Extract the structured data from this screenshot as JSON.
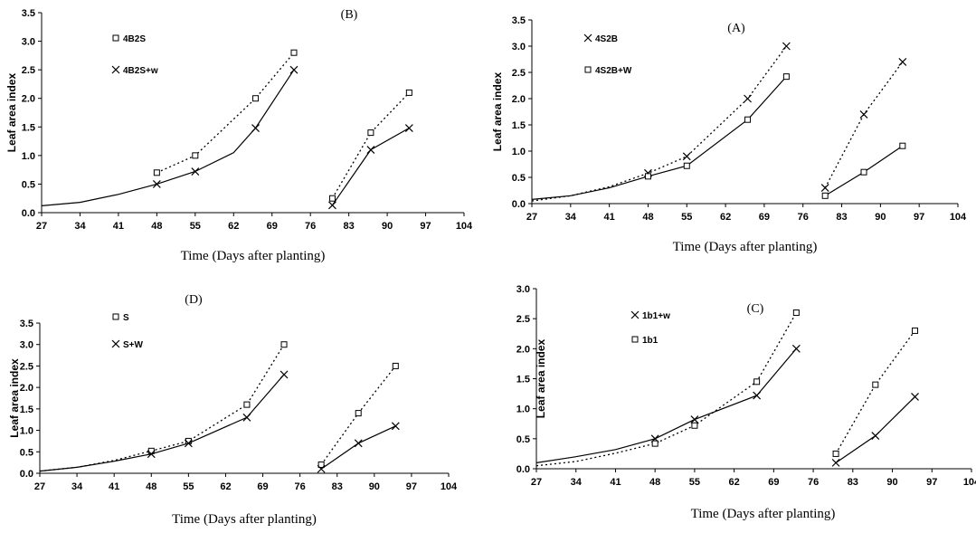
{
  "chart_data": [
    {
      "panel": "(B)",
      "type": "line",
      "title": "(B)",
      "xlabel": "Time (Days after planting)",
      "ylabel": "Leaf area index",
      "xticks": [
        27,
        34,
        41,
        48,
        55,
        62,
        69,
        76,
        83,
        90,
        97,
        104
      ],
      "yticks": [
        0.0,
        0.5,
        1.0,
        1.5,
        2.0,
        2.5,
        3.0,
        3.5
      ],
      "xlim": [
        27,
        104
      ],
      "ylim": [
        0,
        3.5
      ],
      "legend_placement": "top-left",
      "series": [
        {
          "name": "4B2S",
          "marker": "square",
          "dash": true,
          "segments": [
            {
              "points": [
                [
                  48,
                  0.7
                ],
                [
                  55,
                  1.0
                ],
                [
                  66,
                  2.0
                ],
                [
                  73,
                  2.8
                ]
              ],
              "marked": [
                true,
                true,
                true,
                true
              ]
            },
            {
              "points": [
                [
                  80,
                  0.25
                ],
                [
                  87,
                  1.4
                ],
                [
                  94,
                  2.1
                ]
              ],
              "marked": [
                true,
                true,
                true
              ]
            }
          ]
        },
        {
          "name": "4B2S+w",
          "marker": "x",
          "dash": false,
          "segments": [
            {
              "points": [
                [
                  27,
                  0.12
                ],
                [
                  34,
                  0.18
                ],
                [
                  41,
                  0.32
                ],
                [
                  48,
                  0.5
                ],
                [
                  55,
                  0.72
                ],
                [
                  62,
                  1.05
                ],
                [
                  66,
                  1.48
                ],
                [
                  73,
                  2.5
                ]
              ],
              "marked": [
                false,
                false,
                false,
                true,
                true,
                false,
                true,
                true
              ]
            },
            {
              "points": [
                [
                  80,
                  0.13
                ],
                [
                  87,
                  1.1
                ],
                [
                  94,
                  1.48
                ]
              ],
              "marked": [
                true,
                true,
                true
              ]
            }
          ]
        }
      ]
    },
    {
      "panel": "(A)",
      "type": "line",
      "title": "(A)",
      "xlabel": "Time (Days after planting)",
      "ylabel": "Leaf area index",
      "xticks": [
        27,
        34,
        41,
        48,
        55,
        62,
        69,
        76,
        83,
        90,
        97,
        104
      ],
      "yticks": [
        0.0,
        0.5,
        1.0,
        1.5,
        2.0,
        2.5,
        3.0,
        3.5
      ],
      "xlim": [
        27,
        104
      ],
      "ylim": [
        0,
        3.5
      ],
      "legend_placement": "top-left",
      "series": [
        {
          "name": "4S2B",
          "marker": "x",
          "dash": true,
          "segments": [
            {
              "points": [
                [
                  27,
                  0.05
                ],
                [
                  34,
                  0.15
                ],
                [
                  41,
                  0.32
                ],
                [
                  48,
                  0.58
                ],
                [
                  55,
                  0.9
                ],
                [
                  66,
                  2.0
                ],
                [
                  73,
                  3.0
                ]
              ],
              "marked": [
                false,
                false,
                false,
                true,
                true,
                true,
                true
              ]
            },
            {
              "points": [
                [
                  80,
                  0.3
                ],
                [
                  87,
                  1.7
                ],
                [
                  94,
                  2.7
                ]
              ],
              "marked": [
                true,
                true,
                true
              ]
            }
          ]
        },
        {
          "name": "4S2B+W",
          "marker": "square",
          "dash": false,
          "segments": [
            {
              "points": [
                [
                  27,
                  0.08
                ],
                [
                  34,
                  0.15
                ],
                [
                  41,
                  0.3
                ],
                [
                  48,
                  0.52
                ],
                [
                  55,
                  0.72
                ],
                [
                  66,
                  1.6
                ],
                [
                  73,
                  2.42
                ]
              ],
              "marked": [
                false,
                false,
                false,
                true,
                true,
                true,
                true
              ]
            },
            {
              "points": [
                [
                  80,
                  0.15
                ],
                [
                  87,
                  0.6
                ],
                [
                  94,
                  1.1
                ]
              ],
              "marked": [
                true,
                true,
                true
              ]
            }
          ]
        }
      ]
    },
    {
      "panel": "(D)",
      "type": "line",
      "title": "(D)",
      "xlabel": "Time (Days after planting)",
      "ylabel": "Leaf area index",
      "xticks": [
        27,
        34,
        41,
        48,
        55,
        62,
        69,
        76,
        83,
        90,
        97,
        104
      ],
      "yticks": [
        0.0,
        0.5,
        1.0,
        1.5,
        2.0,
        2.5,
        3.0,
        3.5
      ],
      "xlim": [
        27,
        104
      ],
      "ylim": [
        0,
        3.5
      ],
      "legend_placement": "top-left",
      "series": [
        {
          "name": "S",
          "marker": "square",
          "dash": true,
          "segments": [
            {
              "points": [
                [
                  27,
                  0.05
                ],
                [
                  34,
                  0.14
                ],
                [
                  41,
                  0.3
                ],
                [
                  48,
                  0.52
                ],
                [
                  55,
                  0.75
                ],
                [
                  66,
                  1.6
                ],
                [
                  73,
                  3.0
                ]
              ],
              "marked": [
                false,
                false,
                false,
                true,
                true,
                true,
                true
              ]
            },
            {
              "points": [
                [
                  80,
                  0.2
                ],
                [
                  87,
                  1.4
                ],
                [
                  94,
                  2.5
                ]
              ],
              "marked": [
                true,
                true,
                true
              ]
            }
          ]
        },
        {
          "name": "S+W",
          "marker": "x",
          "dash": false,
          "segments": [
            {
              "points": [
                [
                  27,
                  0.05
                ],
                [
                  34,
                  0.14
                ],
                [
                  41,
                  0.28
                ],
                [
                  48,
                  0.45
                ],
                [
                  55,
                  0.7
                ],
                [
                  66,
                  1.3
                ],
                [
                  73,
                  2.3
                ]
              ],
              "marked": [
                false,
                false,
                false,
                true,
                true,
                true,
                true
              ]
            },
            {
              "points": [
                [
                  80,
                  0.1
                ],
                [
                  87,
                  0.7
                ],
                [
                  94,
                  1.1
                ]
              ],
              "marked": [
                true,
                true,
                true
              ]
            }
          ]
        }
      ]
    },
    {
      "panel": "(C)",
      "type": "line",
      "title": "(C)",
      "xlabel": "Time (Days after planting)",
      "ylabel": "Leaf area index",
      "xticks": [
        27,
        34,
        41,
        48,
        55,
        62,
        69,
        76,
        83,
        90,
        97,
        104
      ],
      "yticks": [
        0.0,
        0.5,
        1.0,
        1.5,
        2.0,
        2.5,
        3.0
      ],
      "xlim": [
        27,
        104
      ],
      "ylim": [
        0,
        3.0
      ],
      "legend_placement": "top-left",
      "series": [
        {
          "name": "1b1+w",
          "marker": "x",
          "dash": false,
          "segments": [
            {
              "points": [
                [
                  27,
                  0.1
                ],
                [
                  34,
                  0.2
                ],
                [
                  41,
                  0.32
                ],
                [
                  48,
                  0.5
                ],
                [
                  55,
                  0.82
                ],
                [
                  66,
                  1.22
                ],
                [
                  73,
                  2.0
                ]
              ],
              "marked": [
                false,
                false,
                false,
                true,
                true,
                true,
                true
              ]
            },
            {
              "points": [
                [
                  80,
                  0.1
                ],
                [
                  87,
                  0.55
                ],
                [
                  94,
                  1.2
                ]
              ],
              "marked": [
                true,
                true,
                true
              ]
            }
          ]
        },
        {
          "name": "1b1",
          "marker": "square",
          "dash": true,
          "segments": [
            {
              "points": [
                [
                  27,
                  0.05
                ],
                [
                  34,
                  0.12
                ],
                [
                  41,
                  0.26
                ],
                [
                  48,
                  0.42
                ],
                [
                  55,
                  0.72
                ],
                [
                  66,
                  1.45
                ],
                [
                  73,
                  2.6
                ]
              ],
              "marked": [
                false,
                false,
                false,
                true,
                true,
                true,
                true
              ]
            },
            {
              "points": [
                [
                  80,
                  0.25
                ],
                [
                  87,
                  1.4
                ],
                [
                  94,
                  2.3
                ]
              ],
              "marked": [
                true,
                true,
                true
              ]
            }
          ]
        }
      ]
    }
  ]
}
